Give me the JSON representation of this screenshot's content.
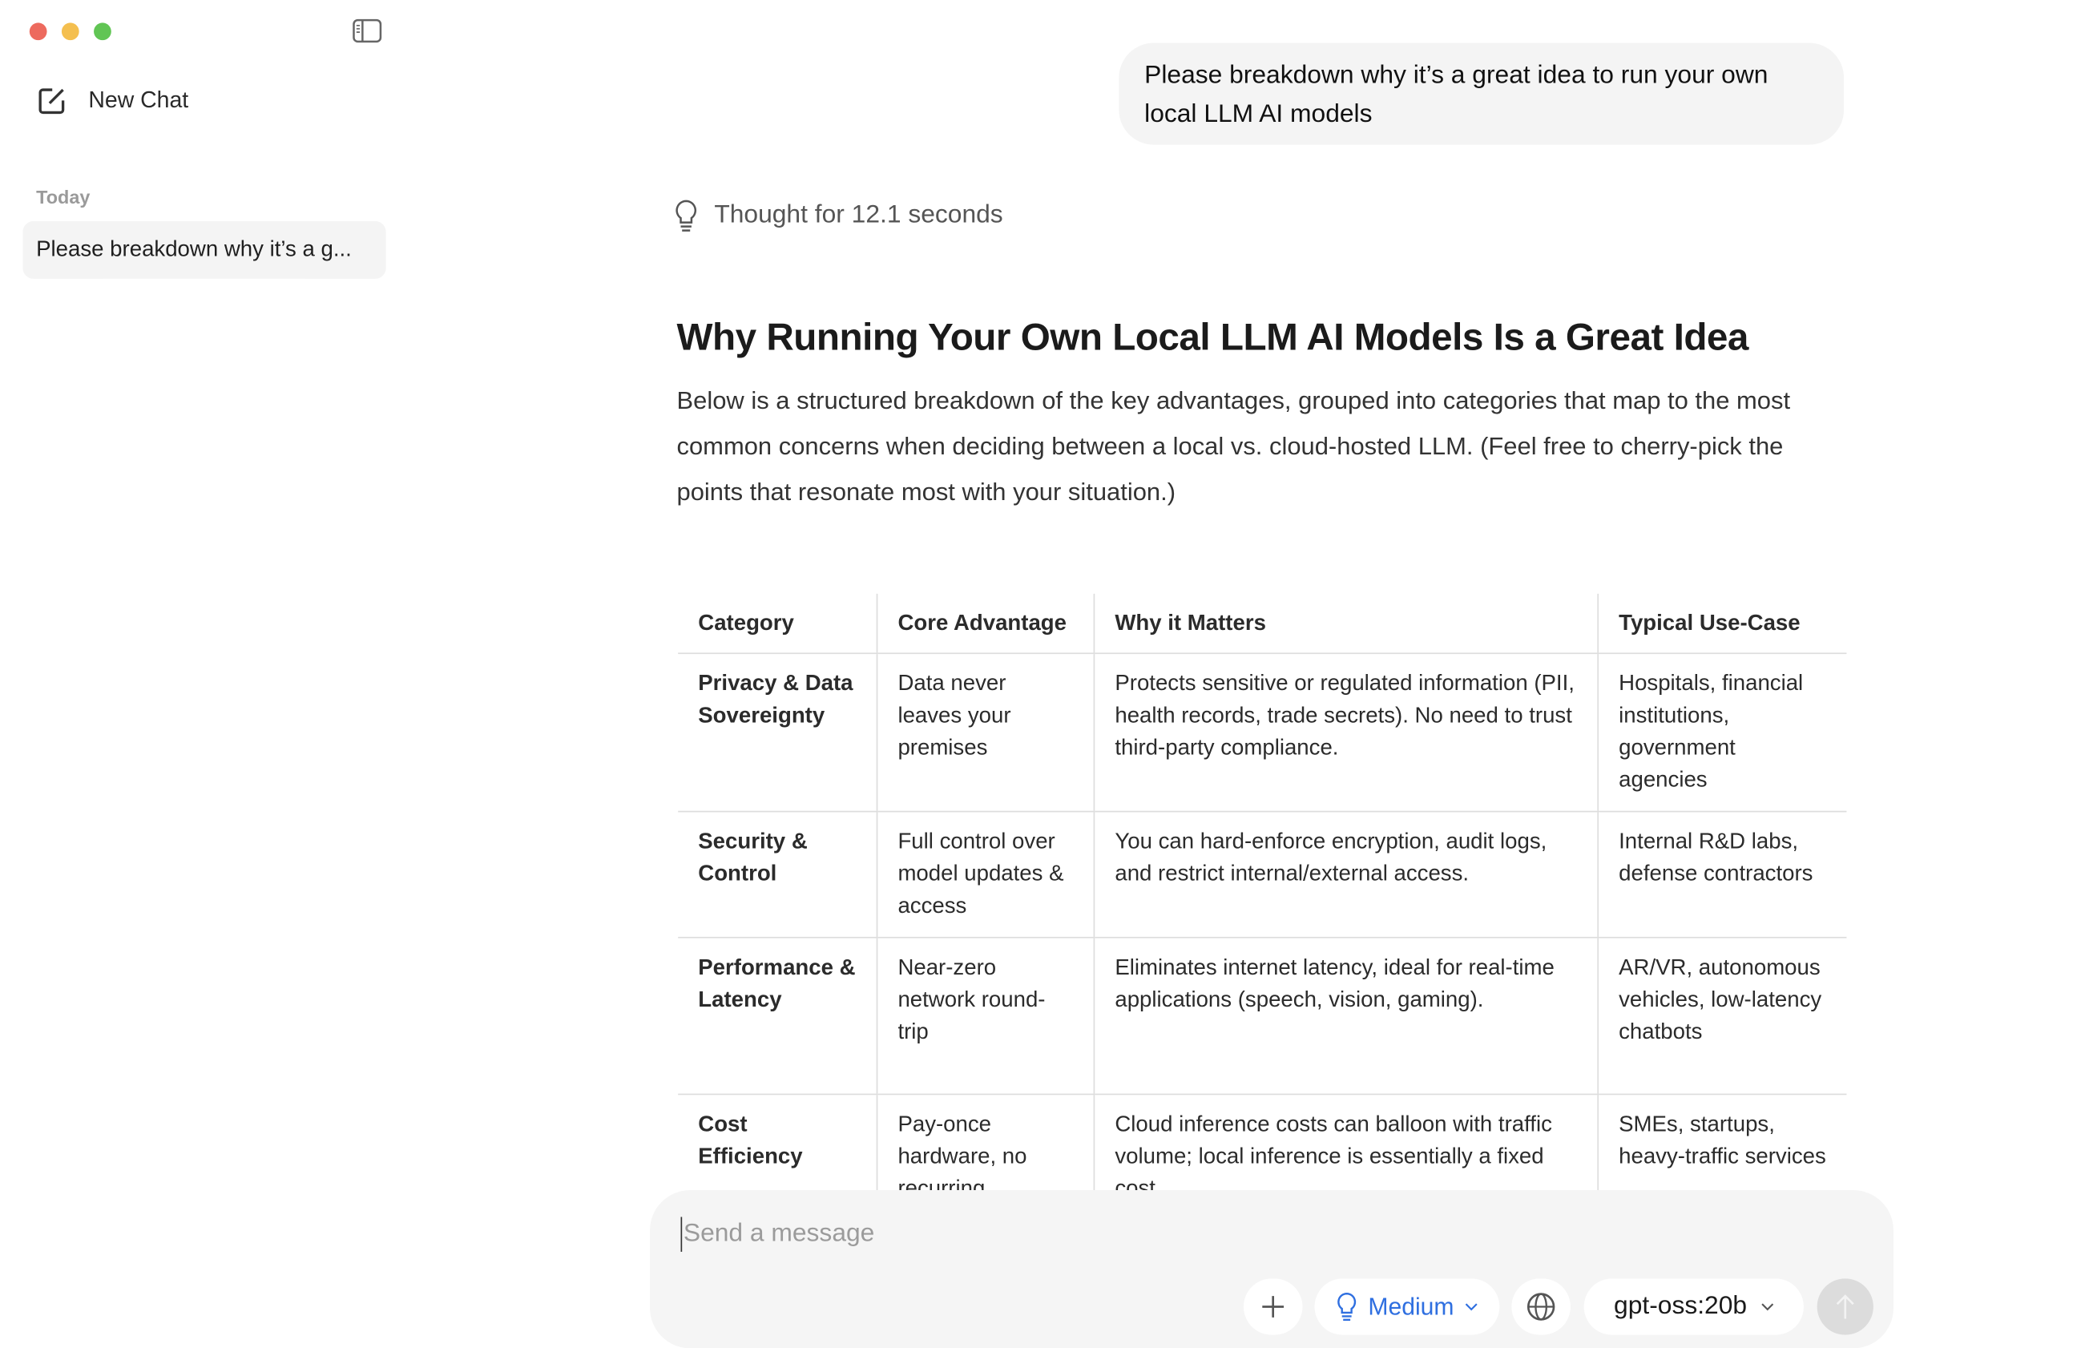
{
  "window": {
    "traffic_lights": {
      "close": "#ed6a5e",
      "minimize": "#f4bf4f",
      "zoom": "#61c554"
    }
  },
  "sidebar": {
    "new_chat_label": "New Chat",
    "section_label": "Today",
    "history": [
      {
        "label": "Please breakdown why it’s a g..."
      }
    ]
  },
  "chat": {
    "user_message": "Please breakdown why it’s a great idea to run your own local LLM AI models",
    "thought_label": "Thought for 12.1 seconds",
    "heading": "Why Running Your Own Local LLM AI Models Is a Great Idea",
    "intro": "Below is a structured breakdown of the key advantages, grouped into categories that map to the most common concerns when deciding between a local vs. cloud-hosted LLM. (Feel free to cherry-pick the points that resonate most with your situation.)",
    "table": {
      "headers": [
        "Category",
        "Core Advantage",
        "Why it Matters",
        "Typical Use-Case"
      ],
      "rows": [
        [
          "Privacy & Data Sovereignty",
          "Data never leaves your premises",
          "Protects sensitive or regulated information (PII, health records, trade secrets). No need to trust third-party compliance.",
          "Hospitals, financial institutions, government agencies"
        ],
        [
          "Security & Control",
          "Full control over model updates & access",
          "You can hard-enforce encryption, audit logs, and restrict internal/external access.",
          "Internal R&D labs, defense contractors"
        ],
        [
          "Performance & Latency",
          "Near-zero network round-trip",
          "Eliminates internet latency, ideal for real-time applications (speech, vision, gaming).",
          "AR/VR, autonomous vehicles, low-latency chatbots"
        ],
        [
          "Cost Efficiency",
          "Pay-once hardware, no recurring",
          "Cloud inference costs can balloon with traffic volume; local inference is essentially a fixed cost",
          "SMEs, startups, heavy-traffic services"
        ]
      ]
    }
  },
  "composer": {
    "placeholder": "Send a message",
    "reasoning_label": "Medium",
    "model_label": "gpt-oss:20b",
    "accent": "#2f6fe0"
  }
}
